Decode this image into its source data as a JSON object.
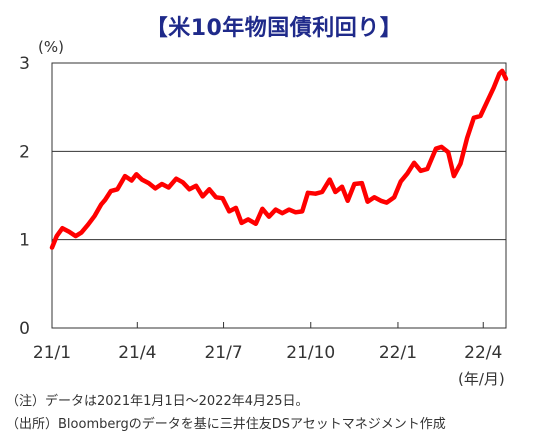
{
  "chart_data": {
    "type": "line",
    "title": "【米10年物国債利回り】",
    "y_unit": "(%)",
    "x_unit": "(年/月)",
    "ylim": [
      0,
      3
    ],
    "yticks": [
      "0",
      "1",
      "2",
      "3"
    ],
    "grid": "horizontal",
    "x_ticks": [
      {
        "label": "21/1",
        "date": "2021-01-01"
      },
      {
        "label": "21/4",
        "date": "2021-04-01"
      },
      {
        "label": "21/7",
        "date": "2021-07-01"
      },
      {
        "label": "21/10",
        "date": "2021-10-01"
      },
      {
        "label": "22/1",
        "date": "2022-01-01"
      },
      {
        "label": "22/4",
        "date": "2022-04-01"
      }
    ],
    "x_range": [
      "2021-01-01",
      "2022-04-25"
    ],
    "series": [
      {
        "color": "#ff0000",
        "points": [
          [
            "2021-01-01",
            0.91
          ],
          [
            "2021-01-06",
            1.04
          ],
          [
            "2021-01-12",
            1.13
          ],
          [
            "2021-01-19",
            1.09
          ],
          [
            "2021-01-26",
            1.04
          ],
          [
            "2021-02-01",
            1.08
          ],
          [
            "2021-02-08",
            1.17
          ],
          [
            "2021-02-15",
            1.27
          ],
          [
            "2021-02-22",
            1.4
          ],
          [
            "2021-02-26",
            1.45
          ],
          [
            "2021-03-04",
            1.55
          ],
          [
            "2021-03-11",
            1.57
          ],
          [
            "2021-03-19",
            1.72
          ],
          [
            "2021-03-26",
            1.67
          ],
          [
            "2021-03-31",
            1.74
          ],
          [
            "2021-04-06",
            1.68
          ],
          [
            "2021-04-13",
            1.64
          ],
          [
            "2021-04-20",
            1.58
          ],
          [
            "2021-04-27",
            1.63
          ],
          [
            "2021-05-04",
            1.59
          ],
          [
            "2021-05-12",
            1.69
          ],
          [
            "2021-05-19",
            1.65
          ],
          [
            "2021-05-26",
            1.57
          ],
          [
            "2021-06-02",
            1.61
          ],
          [
            "2021-06-09",
            1.49
          ],
          [
            "2021-06-16",
            1.57
          ],
          [
            "2021-06-23",
            1.48
          ],
          [
            "2021-06-30",
            1.47
          ],
          [
            "2021-07-07",
            1.32
          ],
          [
            "2021-07-14",
            1.36
          ],
          [
            "2021-07-20",
            1.19
          ],
          [
            "2021-07-27",
            1.23
          ],
          [
            "2021-08-04",
            1.18
          ],
          [
            "2021-08-11",
            1.35
          ],
          [
            "2021-08-18",
            1.26
          ],
          [
            "2021-08-25",
            1.34
          ],
          [
            "2021-09-01",
            1.3
          ],
          [
            "2021-09-08",
            1.34
          ],
          [
            "2021-09-15",
            1.31
          ],
          [
            "2021-09-22",
            1.32
          ],
          [
            "2021-09-28",
            1.53
          ],
          [
            "2021-10-06",
            1.52
          ],
          [
            "2021-10-13",
            1.54
          ],
          [
            "2021-10-21",
            1.68
          ],
          [
            "2021-10-27",
            1.54
          ],
          [
            "2021-11-03",
            1.6
          ],
          [
            "2021-11-09",
            1.44
          ],
          [
            "2021-11-16",
            1.63
          ],
          [
            "2021-11-24",
            1.64
          ],
          [
            "2021-11-30",
            1.43
          ],
          [
            "2021-12-07",
            1.48
          ],
          [
            "2021-12-14",
            1.44
          ],
          [
            "2021-12-20",
            1.42
          ],
          [
            "2021-12-28",
            1.48
          ],
          [
            "2022-01-04",
            1.66
          ],
          [
            "2022-01-11",
            1.75
          ],
          [
            "2022-01-18",
            1.87
          ],
          [
            "2022-01-25",
            1.78
          ],
          [
            "2022-02-01",
            1.8
          ],
          [
            "2022-02-10",
            2.03
          ],
          [
            "2022-02-16",
            2.05
          ],
          [
            "2022-02-23",
            1.99
          ],
          [
            "2022-03-01",
            1.72
          ],
          [
            "2022-03-08",
            1.86
          ],
          [
            "2022-03-15",
            2.15
          ],
          [
            "2022-03-22",
            2.38
          ],
          [
            "2022-03-29",
            2.4
          ],
          [
            "2022-04-05",
            2.56
          ],
          [
            "2022-04-12",
            2.72
          ],
          [
            "2022-04-18",
            2.88
          ],
          [
            "2022-04-21",
            2.91
          ],
          [
            "2022-04-25",
            2.82
          ]
        ]
      }
    ]
  },
  "notes": [
    "（注）データは2021年1月1日～2022年4月25日。",
    "（出所）Bloombergのデータを基に三井住友DSアセットマネジメント作成"
  ]
}
